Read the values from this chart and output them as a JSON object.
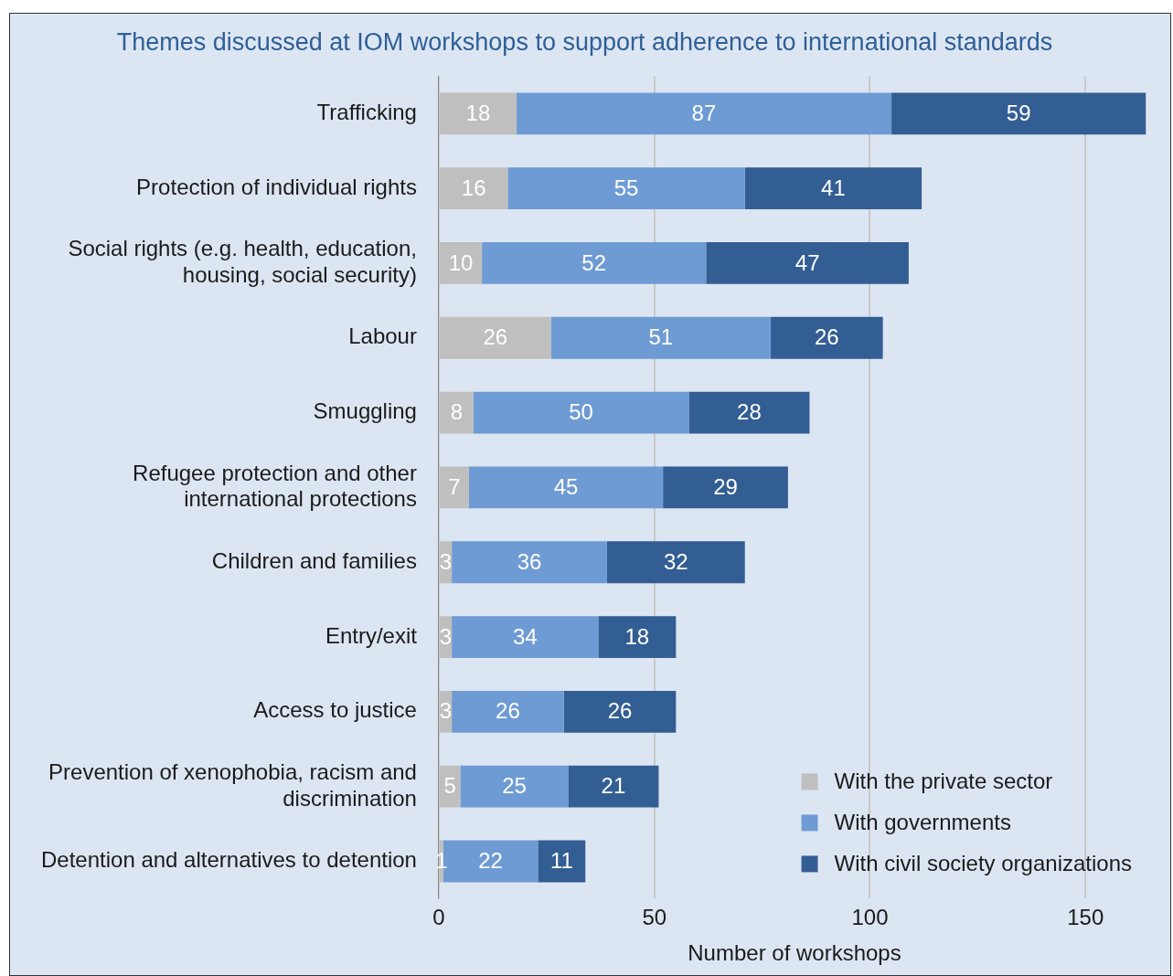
{
  "chart_data": {
    "type": "bar",
    "orientation": "horizontal",
    "stacked": true,
    "title": "Themes discussed at IOM workshops to support adherence to international standards",
    "xlabel": "Number of workshops",
    "categories": [
      "Trafficking",
      "Protection of individual rights",
      "Social rights (e.g. health, education, housing, social security)",
      "Labour",
      "Smuggling",
      "Refugee protection and other international protections",
      "Children and families",
      "Entry/exit",
      "Access to justice",
      "Prevention of xenophobia, racism and discrimination",
      "Detention and alternatives to detention"
    ],
    "series": [
      {
        "name": "With the private sector",
        "color": "#bfbfbf",
        "values": [
          18,
          16,
          10,
          26,
          8,
          7,
          3,
          3,
          3,
          5,
          1
        ]
      },
      {
        "name": "With governments",
        "color": "#6f9bd4",
        "values": [
          87,
          55,
          52,
          51,
          50,
          45,
          36,
          34,
          26,
          25,
          22
        ]
      },
      {
        "name": "With civil society organizations",
        "color": "#335e93",
        "values": [
          59,
          41,
          47,
          26,
          28,
          29,
          32,
          18,
          26,
          21,
          11
        ]
      }
    ],
    "xlim": [
      0,
      165
    ],
    "xticks": [
      0,
      50,
      100,
      150
    ],
    "grid": "x",
    "legend": "bottom right",
    "data_labels": true
  }
}
